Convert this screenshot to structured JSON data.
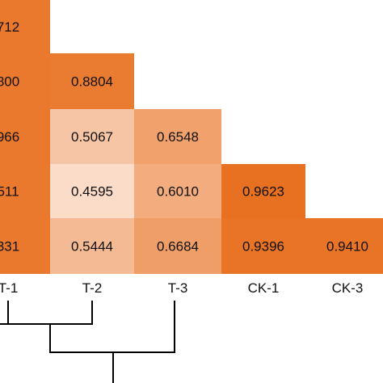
{
  "chart_data": {
    "type": "heatmap",
    "title": "",
    "columns": [
      "T-1",
      "T-2",
      "T-3",
      "CK-1",
      "CK-3"
    ],
    "rows": [
      {
        "cells": [
          "712"
        ]
      },
      {
        "cells": [
          "800",
          "0.8804"
        ]
      },
      {
        "cells": [
          "966",
          "0.5067",
          "0.6548"
        ]
      },
      {
        "cells": [
          "511",
          "0.4595",
          "0.6010",
          "0.9623"
        ]
      },
      {
        "cells": [
          "331",
          "0.5444",
          "0.6684",
          "0.9396",
          "0.9410"
        ]
      }
    ],
    "color_scale": {
      "low": "#fce9de",
      "high": "#e8701f"
    },
    "dendrogram": "below columns",
    "grid": false
  }
}
